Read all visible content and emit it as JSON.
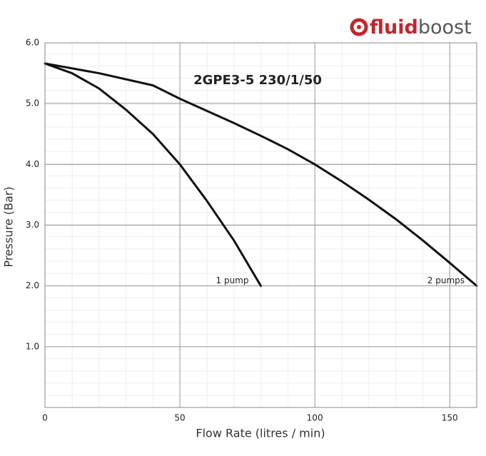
{
  "brand": {
    "bold": "fluid",
    "light": "boost"
  },
  "chart_data": {
    "type": "line",
    "title": "2GPE3-5 230/1/50",
    "x_label": "Flow Rate (litres / min)",
    "y_label": "Pressure (Bar)",
    "xlim": [
      0,
      160
    ],
    "ylim": [
      0,
      6
    ],
    "xticks": [
      0,
      50,
      100,
      150
    ],
    "yticks": [
      {
        "value": 1,
        "label": "1.0"
      },
      {
        "value": 2,
        "label": "2.0"
      },
      {
        "value": 3,
        "label": "3.0"
      },
      {
        "value": 4,
        "label": "4.0"
      },
      {
        "value": 5,
        "label": "5.0"
      },
      {
        "value": 6,
        "label": "6.0"
      }
    ],
    "grid": true,
    "series": [
      {
        "name": "1 pump",
        "color": "#111111",
        "x": [
          0,
          10,
          20,
          30,
          40,
          50,
          60,
          70,
          80
        ],
        "values": [
          5.66,
          5.5,
          5.25,
          4.9,
          4.5,
          4.0,
          3.4,
          2.75,
          2.0
        ]
      },
      {
        "name": "2 pumps",
        "color": "#111111",
        "x": [
          0,
          20,
          40,
          50,
          60,
          70,
          80,
          90,
          100,
          110,
          120,
          130,
          140,
          150,
          160
        ],
        "values": [
          5.66,
          5.5,
          5.3,
          5.08,
          4.88,
          4.68,
          4.47,
          4.25,
          4.0,
          3.72,
          3.42,
          3.1,
          2.75,
          2.38,
          2.0
        ]
      }
    ]
  }
}
